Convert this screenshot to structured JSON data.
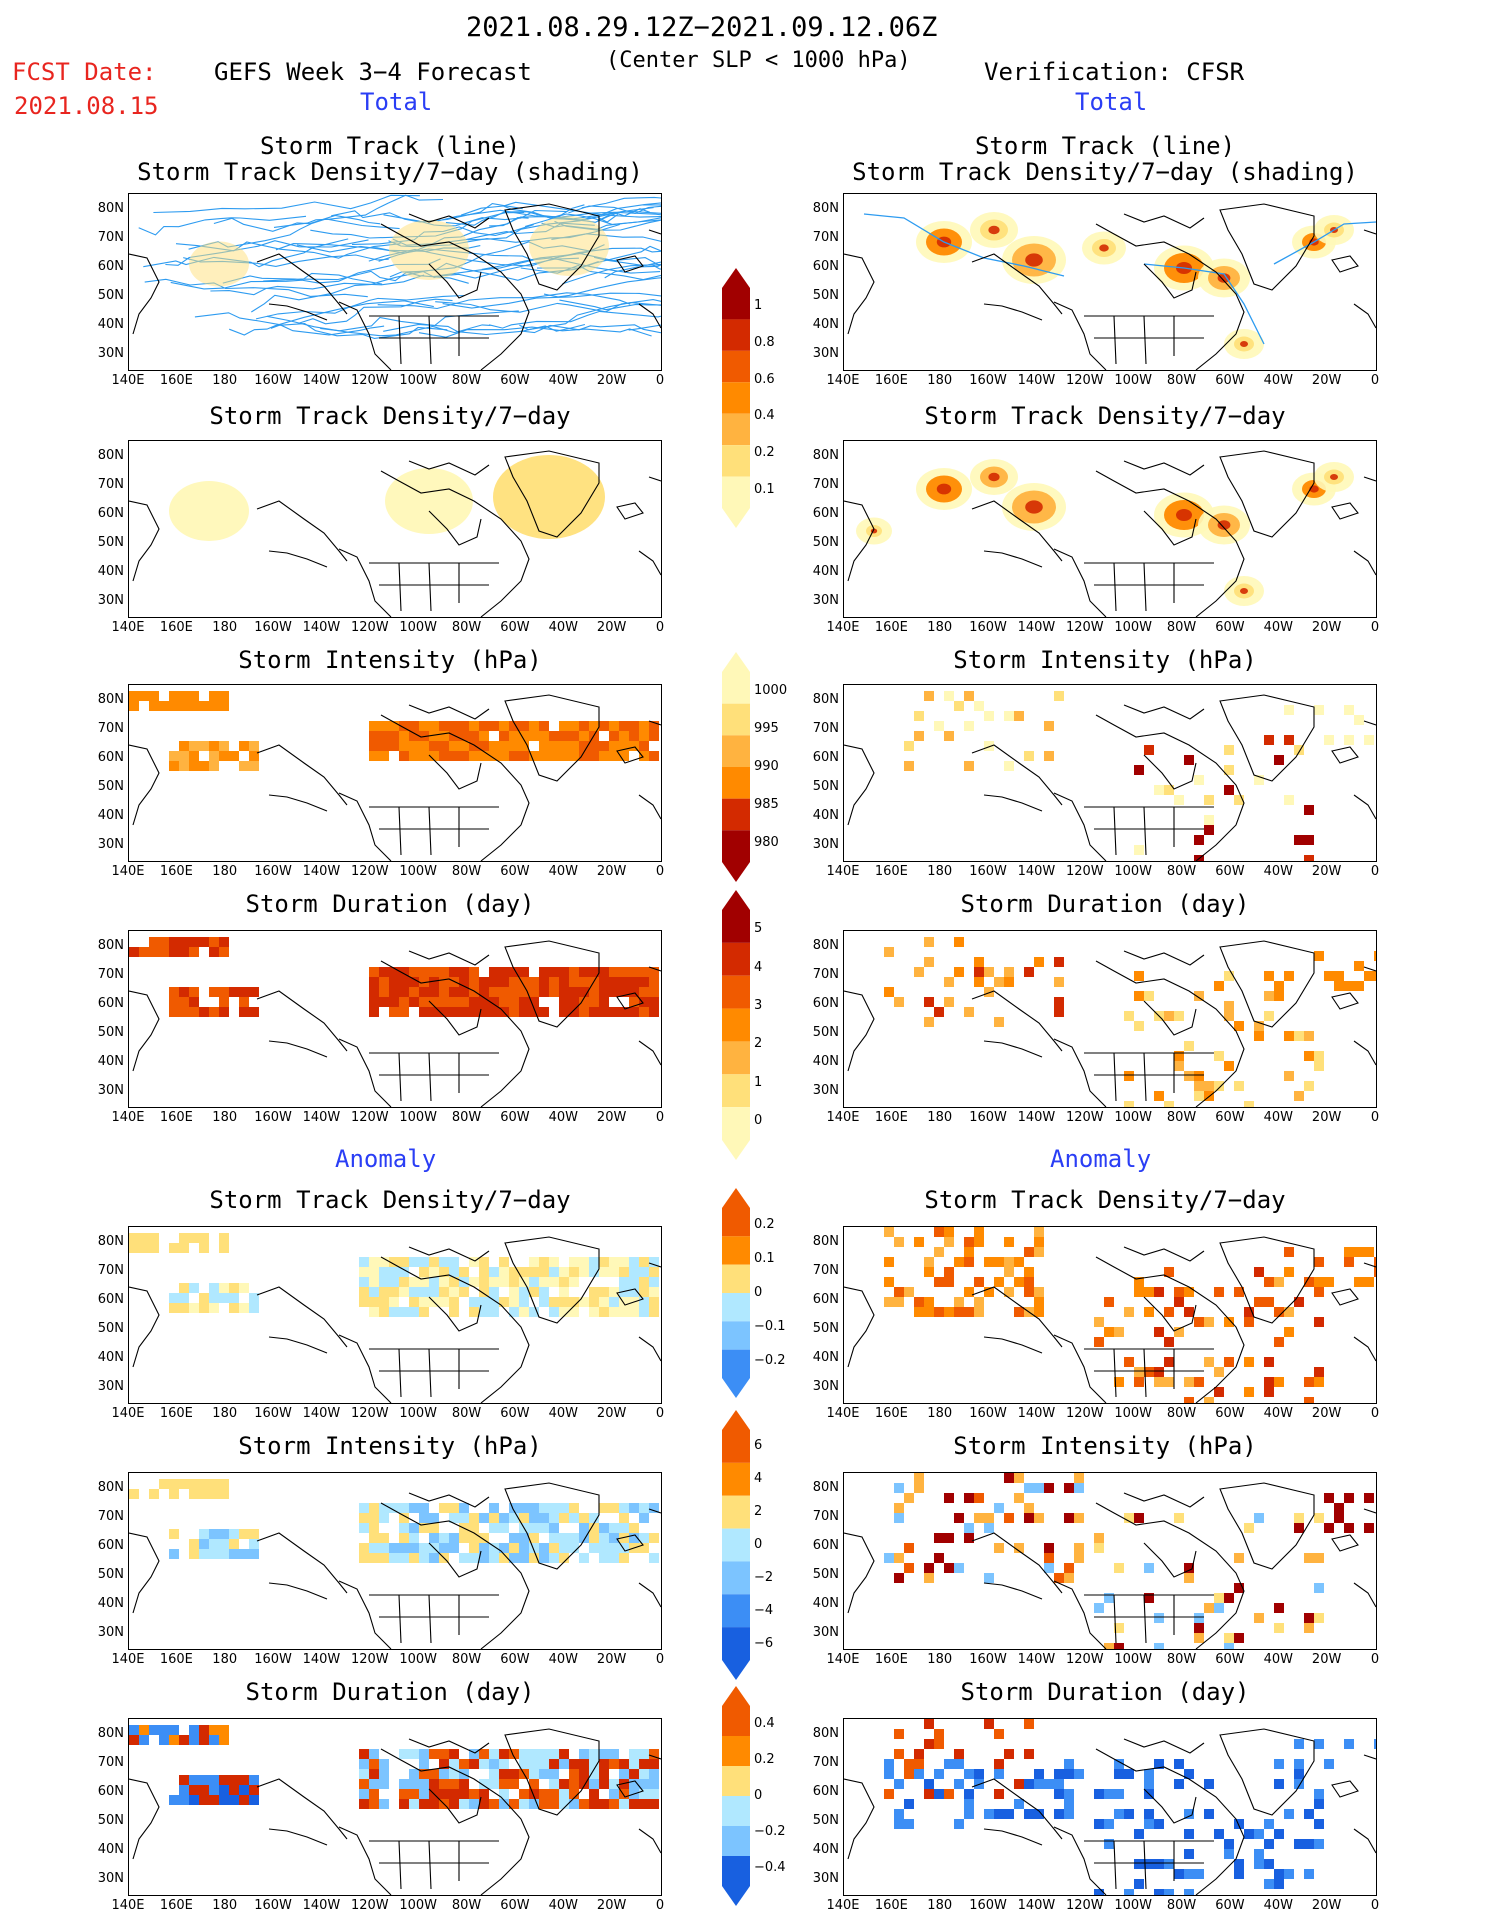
{
  "header": {
    "period": "2021.08.29.12Z−2021.09.12.06Z",
    "fcst_label": "FCST Date:",
    "fcst_date": "2021.08.15",
    "forecast_title": "GEFS Week 3−4 Forecast",
    "criterion": "(Center SLP < 1000 hPa)",
    "verification": "Verification: CFSR",
    "section_total": "Total",
    "section_anomaly": "Anomaly"
  },
  "panel_titles": {
    "track_line": "Storm Track (line)",
    "track_shading": "Storm Track Density/7−day (shading)",
    "density": "Storm Track Density/7−day",
    "intensity": "Storm Intensity (hPa)",
    "duration": "Storm Duration (day)"
  },
  "axes": {
    "x_ticks": [
      "140E",
      "160E",
      "180",
      "160W",
      "140W",
      "120W",
      "100W",
      "80W",
      "60W",
      "40W",
      "20W",
      "0"
    ],
    "y_ticks": [
      "80N",
      "70N",
      "60N",
      "50N",
      "40N",
      "30N"
    ]
  },
  "colorbars": {
    "density_total": [
      "1",
      "0.8",
      "0.6",
      "0.4",
      "0.2",
      "0.1"
    ],
    "intensity_total": [
      "1000",
      "995",
      "990",
      "985",
      "980"
    ],
    "duration_total": [
      "5",
      "4",
      "3",
      "2",
      "1",
      "0"
    ],
    "density_anom": [
      "0.2",
      "0.1",
      "0",
      "−0.1",
      "−0.2"
    ],
    "intensity_anom": [
      "6",
      "4",
      "2",
      "0",
      "−2",
      "−4",
      "−6"
    ],
    "duration_anom": [
      "0.4",
      "0.2",
      "0",
      "−0.2",
      "−0.4"
    ]
  },
  "colors": {
    "title_red": "#e8251f",
    "section_blue": "#2a3ef5",
    "track_line": "#2d9bf0",
    "warm_scale": [
      "#fff8b8",
      "#ffe07a",
      "#ffb340",
      "#ff8a00",
      "#f05a00",
      "#d32a00",
      "#a10000"
    ],
    "cool_scale": [
      "#b0e8ff",
      "#7cc4ff",
      "#3c8ef5",
      "#1860e0"
    ]
  }
}
